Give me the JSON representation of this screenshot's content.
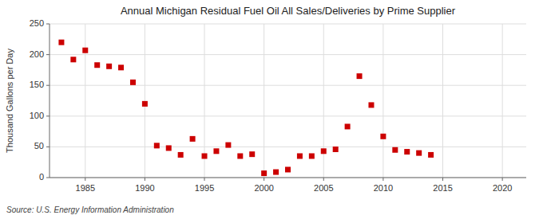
{
  "chart_data": {
    "type": "scatter",
    "title": "Annual Michigan Residual Fuel Oil All Sales/Deliveries by Prime Supplier",
    "ylabel": "Thousand Gallons per Day",
    "annotation": "Source: U.S. Energy Information Administration",
    "x": [
      1983,
      1984,
      1985,
      1986,
      1987,
      1988,
      1989,
      1990,
      1991,
      1992,
      1993,
      1994,
      1995,
      1996,
      1997,
      1998,
      1999,
      2000,
      2001,
      2002,
      2003,
      2004,
      2005,
      2006,
      2007,
      2008,
      2009,
      2010,
      2011,
      2012,
      2013,
      2014
    ],
    "values": [
      220,
      192,
      207,
      183,
      181,
      179,
      155,
      120,
      52,
      48,
      37,
      63,
      35,
      43,
      53,
      35,
      38,
      7,
      9,
      13,
      35,
      35,
      43,
      46,
      83,
      165,
      118,
      67,
      45,
      42,
      40,
      37
    ],
    "color": "#cc0000",
    "marker": "square",
    "xlim": [
      1982,
      2022
    ],
    "ylim": [
      0,
      250
    ],
    "xticks": [
      1985,
      1990,
      1995,
      2000,
      2005,
      2010,
      2015,
      2020
    ],
    "yticks": [
      0,
      50,
      100,
      150,
      200,
      250
    ],
    "grid": true
  }
}
